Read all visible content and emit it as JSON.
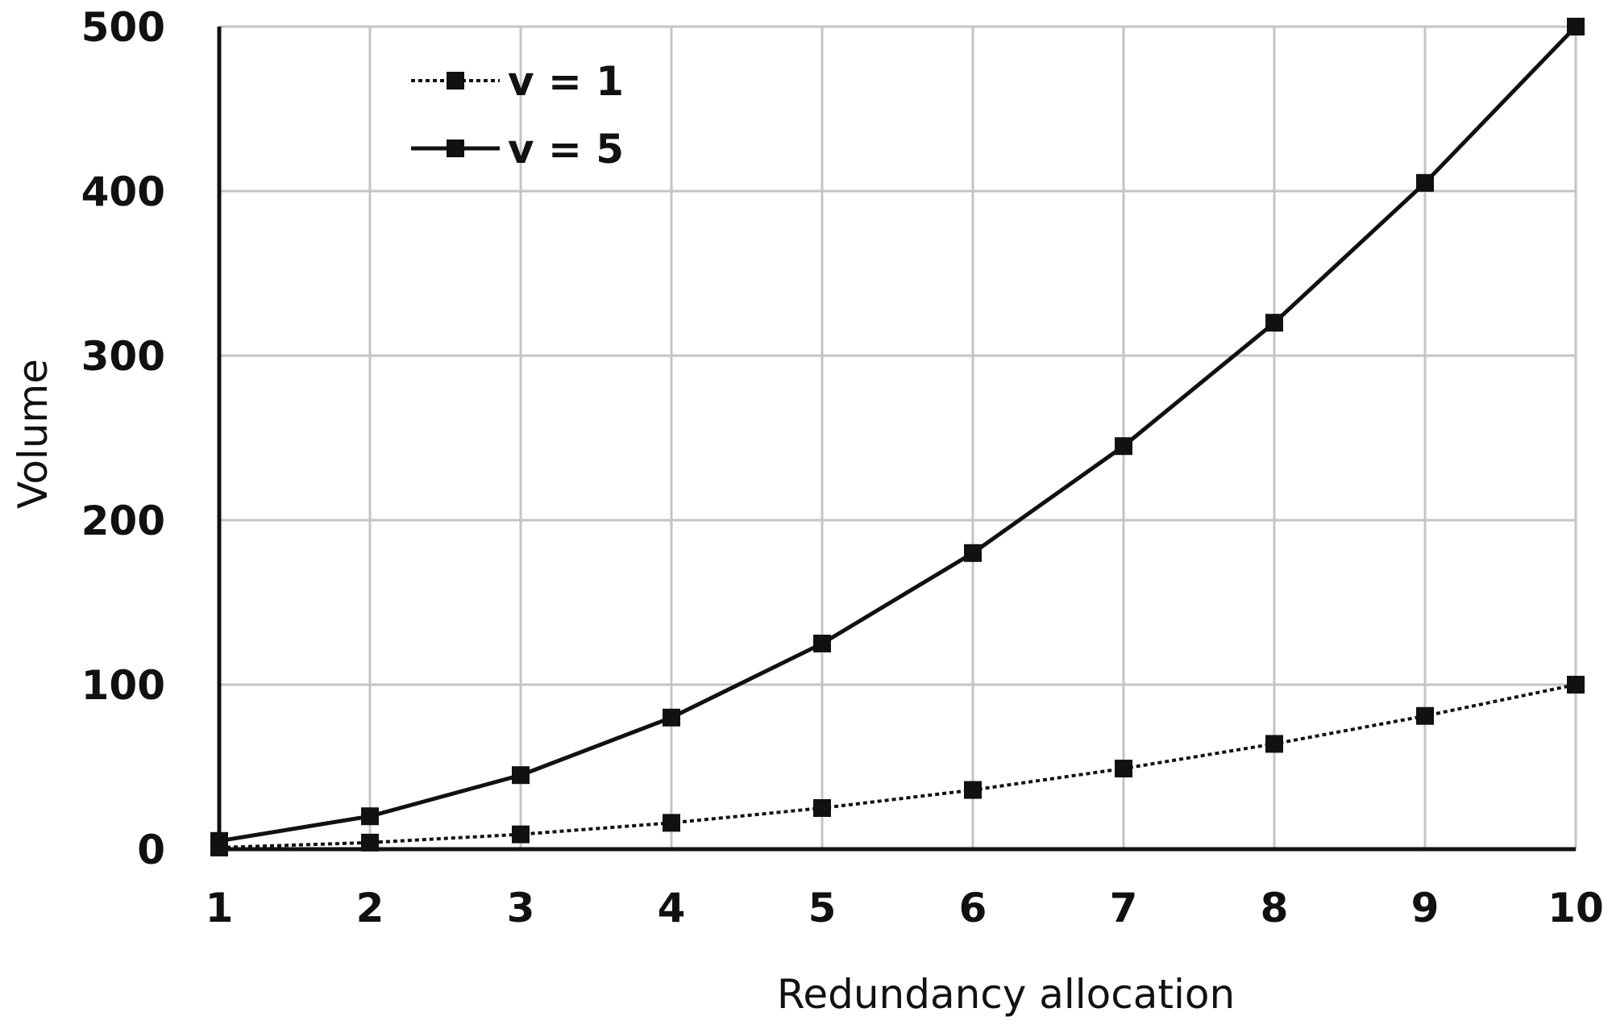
{
  "chart_data": {
    "type": "line",
    "title": "",
    "xlabel": "Redundancy allocation",
    "ylabel": "Volume",
    "x": [
      1,
      2,
      3,
      4,
      5,
      6,
      7,
      8,
      9,
      10
    ],
    "xlim": [
      1,
      10
    ],
    "ylim": [
      0,
      500
    ],
    "yticks": [
      0,
      100,
      200,
      300,
      400,
      500
    ],
    "xticks": [
      1,
      2,
      3,
      4,
      5,
      6,
      7,
      8,
      9,
      10
    ],
    "grid": true,
    "legend_position": "top-left",
    "series": [
      {
        "name": "v = 1",
        "style": "dotted",
        "marker": "square",
        "color": "#111111",
        "values": [
          1,
          4,
          9,
          16,
          25,
          36,
          49,
          64,
          81,
          100
        ]
      },
      {
        "name": "v = 5",
        "style": "solid",
        "marker": "square",
        "color": "#111111",
        "values": [
          5,
          20,
          45,
          80,
          125,
          180,
          245,
          320,
          405,
          500
        ]
      }
    ]
  }
}
